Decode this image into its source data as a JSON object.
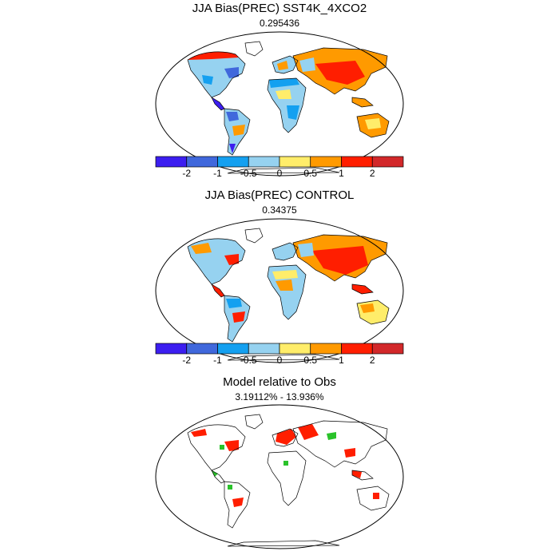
{
  "colorbar": {
    "colors": [
      "#3c1ef0",
      "#4068dc",
      "#14a0f0",
      "#96d2f0",
      "#ffed6a",
      "#ff9a00",
      "#ff1e00",
      "#d2282a"
    ],
    "tick_labels": [
      "-2",
      "-1",
      "-0.5",
      "0",
      "0.5",
      "1",
      "2"
    ]
  },
  "panels": [
    {
      "title": "JJA Bias(PREC) SST4K_4XCO2",
      "subtitle": "0.295436"
    },
    {
      "title": "JJA Bias(PREC) CONTROL",
      "subtitle": "0.34375"
    },
    {
      "title": "Model relative to Obs",
      "subtitle": "3.19112% - 13.936%"
    }
  ]
}
